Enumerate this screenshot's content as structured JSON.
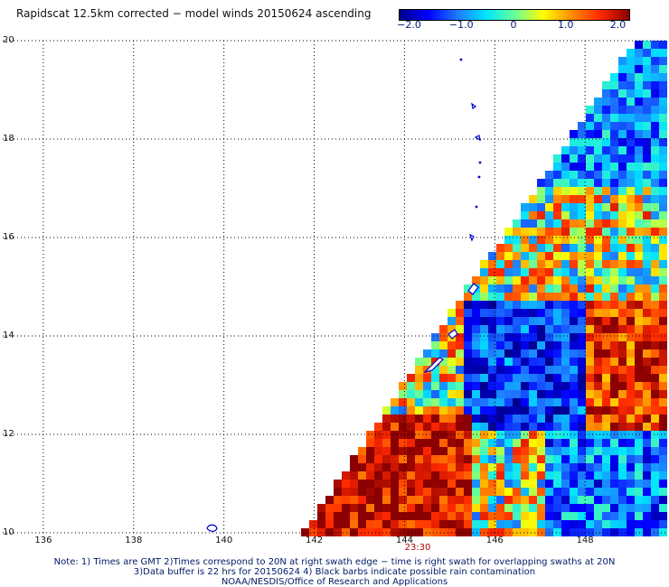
{
  "title": "Rapidscat 12.5km corrected − model winds 20150624 ascending",
  "colorbar": {
    "ticks": [
      "−2.0",
      "−1.0",
      "0",
      "1.0",
      "2.0"
    ],
    "tick_values": [
      -2.0,
      -1.0,
      0,
      1.0,
      2.0
    ],
    "range": [
      -2.2,
      2.2
    ],
    "colors": [
      "#00008c",
      "#0000ff",
      "#1e78ff",
      "#00e5ff",
      "#66ff99",
      "#ffff00",
      "#ff8c00",
      "#ff2800",
      "#8b0000"
    ]
  },
  "axes": {
    "lat_labels": [
      "20",
      "18",
      "16",
      "14",
      "12",
      "10"
    ],
    "lat_values": [
      20,
      18,
      16,
      14,
      12,
      10
    ],
    "lon_labels": [
      "136",
      "138",
      "140",
      "142",
      "144",
      "146",
      "148"
    ],
    "lon_values": [
      136,
      138,
      140,
      142,
      144,
      146,
      148
    ],
    "lat_range": [
      10,
      20
    ],
    "lon_range": [
      135.1,
      149.8
    ],
    "grid": "dotted"
  },
  "time_label": "23:30",
  "notes": [
    "Note: 1) Times are GMT 2)Times correspond to 20N at right swath edge − time is right swath for overlapping swaths at 20N",
    "3)Data buffer is 22 hrs for 20150624 4) Black barbs indicate possible rain contamination",
    "NOAA/NESDIS/Office of Research and Applications"
  ],
  "icons": {
    "coastline": "island-outline-icon"
  }
}
